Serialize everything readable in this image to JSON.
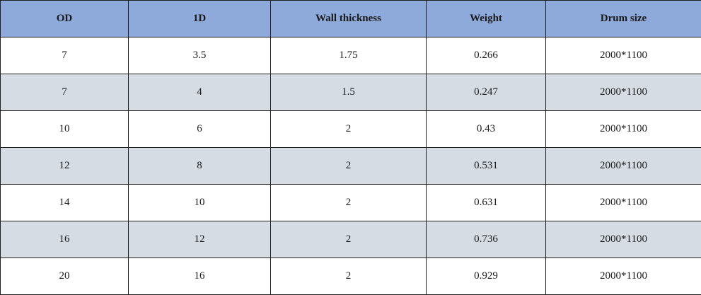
{
  "table": {
    "headers": [
      "OD",
      "1D",
      "Wall thickness",
      "Weight",
      "Drum size"
    ],
    "rows": [
      [
        "7",
        "3.5",
        "1.75",
        "0.266",
        "2000*1100"
      ],
      [
        "7",
        "4",
        "1.5",
        "0.247",
        "2000*1100"
      ],
      [
        "10",
        "6",
        "2",
        "0.43",
        "2000*1100"
      ],
      [
        "12",
        "8",
        "2",
        "0.531",
        "2000*1100"
      ],
      [
        "14",
        "10",
        "2",
        "0.631",
        "2000*1100"
      ],
      [
        "16",
        "12",
        "2",
        "0.736",
        "2000*1100"
      ],
      [
        "20",
        "16",
        "2",
        "0.929",
        "2000*1100"
      ]
    ]
  },
  "colors": {
    "header_bg": "#8eaadb",
    "row_alt_bg": "#d6dce4",
    "row_bg": "#ffffff",
    "border": "#1f1f1f"
  }
}
